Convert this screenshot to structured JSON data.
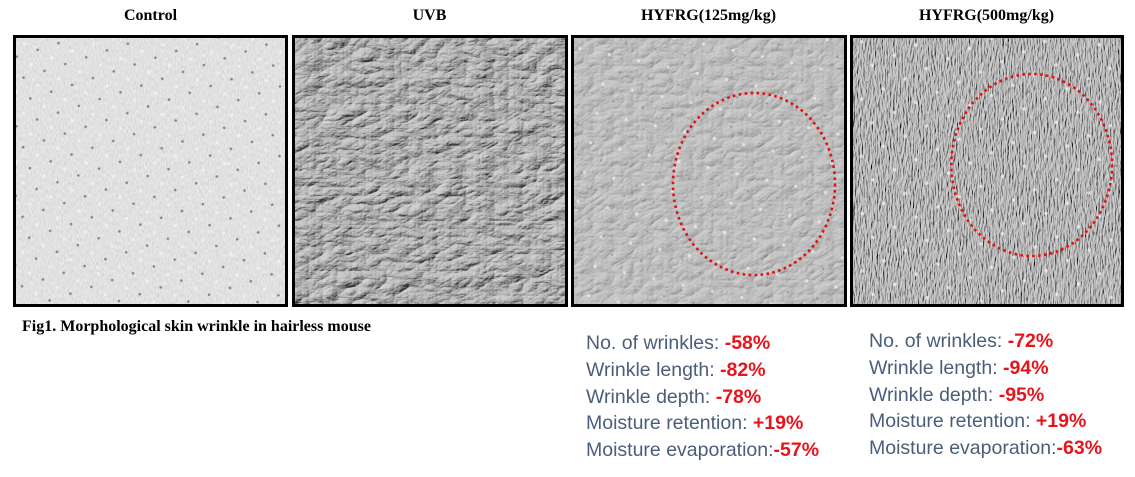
{
  "panels": [
    {
      "title": "Control"
    },
    {
      "title": "UVB"
    },
    {
      "title": "HYFRG(125mg/kg)"
    },
    {
      "title": "HYFRG(500mg/kg)"
    }
  ],
  "caption": "Fig1. Morphological skin wrinkle in hairless mouse",
  "stats_125": [
    {
      "label": "No. of wrinkles:",
      "value": "-58%"
    },
    {
      "label": "Wrinkle length:",
      "value": "-82%"
    },
    {
      "label": "Wrinkle depth:",
      "value": "-78%"
    },
    {
      "label": "Moisture retention:",
      "value": "+19%"
    },
    {
      "label": "Moisture evaporation:",
      "value": "-57%"
    }
  ],
  "stats_500": [
    {
      "label": "No. of wrinkles:",
      "value": "-72%"
    },
    {
      "label": "Wrinkle length:",
      "value": "-94%"
    },
    {
      "label": "Wrinkle depth:",
      "value": "-95%"
    },
    {
      "label": "Moisture retention:",
      "value": "+19%"
    },
    {
      "label": "Moisture evaporation:",
      "value": "-63%"
    }
  ],
  "colors": {
    "label_text": "#4a5e7a",
    "value_text": "#e8141c",
    "highlight_circle": "#dd1111"
  }
}
